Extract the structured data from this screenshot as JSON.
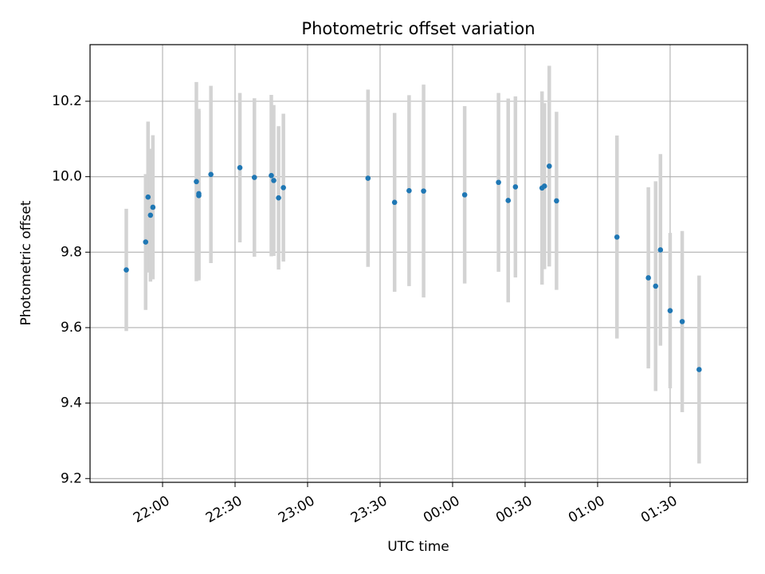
{
  "chart_data": {
    "type": "scatter",
    "title": "Photometric offset variation",
    "xlabel": "UTC time",
    "ylabel": "Photometric offset",
    "x_tick_labels": [
      "22:00",
      "22:30",
      "23:00",
      "23:30",
      "00:00",
      "00:30",
      "01:00",
      "01:30"
    ],
    "y_tick_labels": [
      "9.2",
      "9.4",
      "9.6",
      "9.8",
      "10.0",
      "10.2"
    ],
    "xlim": [
      "21:30",
      "02:02"
    ],
    "ylim": [
      9.19,
      10.35
    ],
    "grid": true,
    "colors": {
      "point": "#1f77b4",
      "errorbar": "#d3d3d3",
      "grid": "#b0b0b0"
    },
    "series": [
      {
        "points": [
          {
            "x": "21:45",
            "y": 9.753,
            "err": 0.162
          },
          {
            "x": "21:53",
            "y": 9.827,
            "err": 0.18
          },
          {
            "x": "21:54",
            "y": 9.946,
            "err": 0.2
          },
          {
            "x": "21:55",
            "y": 9.898,
            "err": 0.176
          },
          {
            "x": "21:56",
            "y": 9.919,
            "err": 0.191
          },
          {
            "x": "22:14",
            "y": 9.987,
            "err": 0.264
          },
          {
            "x": "22:15",
            "y": 9.95,
            "err": 0.225
          },
          {
            "x": "22:15",
            "y": 9.955,
            "err": 0.225
          },
          {
            "x": "22:20",
            "y": 10.006,
            "err": 0.235
          },
          {
            "x": "22:32",
            "y": 10.024,
            "err": 0.198
          },
          {
            "x": "22:38",
            "y": 9.998,
            "err": 0.21
          },
          {
            "x": "22:45",
            "y": 10.003,
            "err": 0.214
          },
          {
            "x": "22:46",
            "y": 9.99,
            "err": 0.2
          },
          {
            "x": "22:48",
            "y": 9.944,
            "err": 0.19
          },
          {
            "x": "22:50",
            "y": 9.971,
            "err": 0.196
          },
          {
            "x": "23:25",
            "y": 9.996,
            "err": 0.235
          },
          {
            "x": "23:36",
            "y": 9.932,
            "err": 0.237
          },
          {
            "x": "23:42",
            "y": 9.963,
            "err": 0.253
          },
          {
            "x": "23:48",
            "y": 9.962,
            "err": 0.282
          },
          {
            "x": "00:05",
            "y": 9.952,
            "err": 0.235
          },
          {
            "x": "00:19",
            "y": 9.985,
            "err": 0.237
          },
          {
            "x": "00:23",
            "y": 9.937,
            "err": 0.27
          },
          {
            "x": "00:26",
            "y": 9.973,
            "err": 0.24
          },
          {
            "x": "00:37",
            "y": 9.97,
            "err": 0.256
          },
          {
            "x": "00:38",
            "y": 9.975,
            "err": 0.22
          },
          {
            "x": "00:40",
            "y": 10.028,
            "err": 0.266
          },
          {
            "x": "00:43",
            "y": 9.936,
            "err": 0.236
          },
          {
            "x": "01:08",
            "y": 9.84,
            "err": 0.269
          },
          {
            "x": "01:21",
            "y": 9.732,
            "err": 0.24
          },
          {
            "x": "01:24",
            "y": 9.71,
            "err": 0.278
          },
          {
            "x": "01:26",
            "y": 9.806,
            "err": 0.254
          },
          {
            "x": "01:30",
            "y": 9.645,
            "err": 0.206
          },
          {
            "x": "01:35",
            "y": 9.616,
            "err": 0.24
          },
          {
            "x": "01:42",
            "y": 9.489,
            "err": 0.249
          }
        ]
      }
    ]
  }
}
